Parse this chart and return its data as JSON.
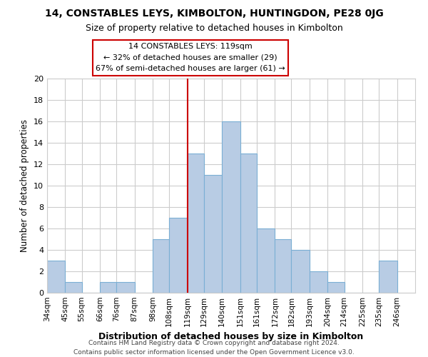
{
  "title": "14, CONSTABLES LEYS, KIMBOLTON, HUNTINGDON, PE28 0JG",
  "subtitle": "Size of property relative to detached houses in Kimbolton",
  "xlabel": "Distribution of detached houses by size in Kimbolton",
  "ylabel": "Number of detached properties",
  "bin_labels": [
    "34sqm",
    "45sqm",
    "55sqm",
    "66sqm",
    "76sqm",
    "87sqm",
    "98sqm",
    "108sqm",
    "119sqm",
    "129sqm",
    "140sqm",
    "151sqm",
    "161sqm",
    "172sqm",
    "182sqm",
    "193sqm",
    "204sqm",
    "214sqm",
    "225sqm",
    "235sqm",
    "246sqm"
  ],
  "bin_edges": [
    34,
    45,
    55,
    66,
    76,
    87,
    98,
    108,
    119,
    129,
    140,
    151,
    161,
    172,
    182,
    193,
    204,
    214,
    225,
    235,
    246
  ],
  "counts": [
    3,
    1,
    0,
    1,
    1,
    0,
    5,
    7,
    13,
    11,
    16,
    13,
    6,
    5,
    4,
    2,
    1,
    0,
    0,
    3
  ],
  "bar_color": "#b8cce4",
  "bar_edgecolor": "#7bafd4",
  "marker_value": 119,
  "marker_color": "#cc0000",
  "ylim": [
    0,
    20
  ],
  "yticks": [
    0,
    2,
    4,
    6,
    8,
    10,
    12,
    14,
    16,
    18,
    20
  ],
  "annotation_title": "14 CONSTABLES LEYS: 119sqm",
  "annotation_line1": "← 32% of detached houses are smaller (29)",
  "annotation_line2": "67% of semi-detached houses are larger (61) →",
  "annotation_box_edgecolor": "#cc0000",
  "footer_line1": "Contains HM Land Registry data © Crown copyright and database right 2024.",
  "footer_line2": "Contains public sector information licensed under the Open Government Licence v3.0.",
  "background_color": "#ffffff",
  "grid_color": "#cccccc"
}
